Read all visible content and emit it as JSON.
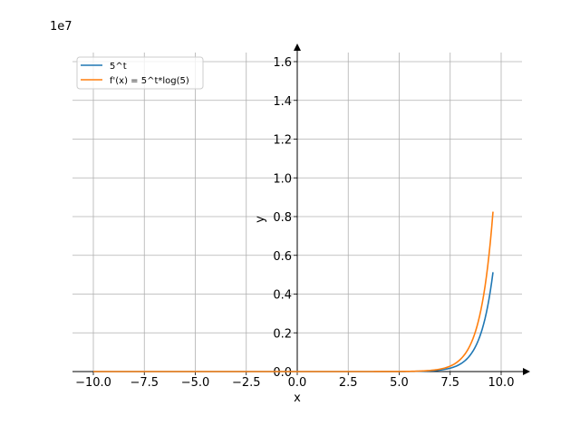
{
  "chart_data": {
    "type": "line",
    "scale_label": "1e7",
    "xlabel": "x",
    "ylabel": "y",
    "xlim": [
      -11,
      11
    ],
    "ylim": [
      0,
      1.7
    ],
    "grid": true,
    "legend_position": "top-left",
    "x_ticks": [
      -10.0,
      -7.5,
      -5.0,
      -2.5,
      0.0,
      2.5,
      5.0,
      7.5,
      10.0
    ],
    "x_tick_labels": [
      "−10.0",
      "−7.5",
      "−5.0",
      "−2.5",
      "0.0",
      "2.5",
      "5.0",
      "7.5",
      "10.0"
    ],
    "y_ticks": [
      0.0,
      0.2,
      0.4,
      0.6,
      0.8,
      1.0,
      1.2,
      1.4,
      1.6
    ],
    "y_tick_labels": [
      "0.0",
      "0.2",
      "0.4",
      "0.6",
      "0.8",
      "1.0",
      "1.2",
      "1.4",
      "1.6"
    ],
    "x_range": [
      -10,
      9.6
    ],
    "series": [
      {
        "name": "5^t",
        "color": "#1f77b4",
        "function": "5^x"
      },
      {
        "name": "f'(x) = 5^t*log(5)",
        "color": "#ff7f0e",
        "function": "5^x*ln(5)"
      }
    ]
  }
}
